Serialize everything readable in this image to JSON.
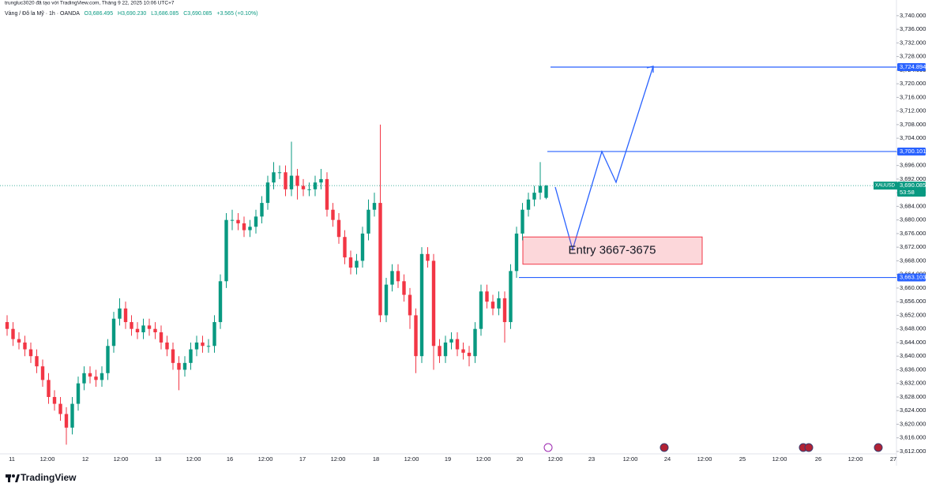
{
  "chart_data": {
    "type": "candlestick",
    "watermark": "trungluc3020 đã tạo với TradingView.com, Tháng 9 22, 2025 10:06 UTC+7",
    "legend": {
      "symbol": "Vàng / Đô la Mỹ · 1h · OANDA",
      "ohlc": [
        "O3,686.495",
        "H3,690.230",
        "L3,686.085",
        "C3,690.085"
      ],
      "change": "+3.565 (+0.10%)"
    },
    "up_color": "#089981",
    "down_color": "#f23645",
    "x_labels": [
      "11",
      "12:00",
      "12",
      "12:00",
      "13",
      "12:00",
      "16",
      "12:00",
      "17",
      "12:00",
      "18",
      "12:00",
      "19",
      "12:00",
      "20",
      "12:00",
      "23",
      "12:00",
      "24",
      "12:00",
      "25",
      "12:00",
      "26",
      "12:00",
      "27"
    ],
    "open": [
      3650,
      3648,
      3645,
      3644,
      3642,
      3640,
      3637,
      3633,
      3628,
      3626,
      3623,
      3619,
      3626,
      3632,
      3635,
      3634,
      3633,
      3635,
      3643,
      3651,
      3654,
      3650,
      3648,
      3647,
      3649,
      3648,
      3647,
      3644,
      3642,
      3638,
      3636,
      3638,
      3642,
      3644,
      3643,
      3643,
      3650,
      3662,
      3680,
      3680,
      3679,
      3677,
      3678,
      3681,
      3685,
      3691,
      3694,
      3694,
      3689,
      3693,
      3690,
      3689,
      3689,
      3691,
      3692,
      3683,
      3680,
      3675,
      3669,
      3666,
      3668,
      3676,
      3683,
      3685,
      3652,
      3661,
      3665,
      3662,
      3658,
      3652,
      3640,
      3670,
      3668,
      3643,
      3640,
      3644,
      3645,
      3642,
      3641,
      3640,
      3648,
      3659,
      3656,
      3654,
      3657,
      3650,
      3665,
      3676,
      3683,
      3686,
      3688,
      3686.495
    ],
    "high": [
      3652,
      3650,
      3647,
      3646,
      3644,
      3642,
      3639,
      3635,
      3630,
      3628,
      3625,
      3628,
      3634,
      3637,
      3637,
      3636,
      3637,
      3645,
      3653,
      3657,
      3656,
      3652,
      3650,
      3651,
      3651,
      3650,
      3649,
      3646,
      3644,
      3640,
      3640,
      3644,
      3646,
      3646,
      3645,
      3652,
      3664,
      3682,
      3683,
      3682,
      3681,
      3680,
      3683,
      3687,
      3693,
      3697,
      3696,
      3696,
      3703,
      3695,
      3692,
      3691,
      3693,
      3695,
      3694,
      3685,
      3682,
      3677,
      3671,
      3670,
      3678,
      3686,
      3688,
      3708,
      3663,
      3667,
      3667,
      3664,
      3660,
      3654,
      3672,
      3672,
      3670,
      3645,
      3646,
      3647,
      3647,
      3644,
      3643,
      3650,
      3661,
      3661,
      3658,
      3659,
      3659,
      3667,
      3678,
      3685,
      3688,
      3690,
      3697,
      3690.23
    ],
    "low": [
      3646,
      3643,
      3642,
      3640,
      3638,
      3635,
      3631,
      3626,
      3624,
      3621,
      3614,
      3617,
      3624,
      3630,
      3632,
      3631,
      3631,
      3633,
      3641,
      3649,
      3648,
      3646,
      3645,
      3645,
      3646,
      3645,
      3642,
      3640,
      3636,
      3630,
      3634,
      3636,
      3640,
      3641,
      3641,
      3641,
      3648,
      3660,
      3677,
      3677,
      3675,
      3675,
      3676,
      3679,
      3683,
      3689,
      3692,
      3687,
      3687,
      3686,
      3687,
      3687,
      3687,
      3689,
      3681,
      3678,
      3673,
      3667,
      3664,
      3664,
      3666,
      3674,
      3681,
      3650,
      3650,
      3659,
      3660,
      3656,
      3648,
      3635,
      3638,
      3666,
      3636,
      3638,
      3638,
      3642,
      3640,
      3639,
      3637,
      3638,
      3646,
      3654,
      3652,
      3652,
      3644,
      3648,
      3663,
      3674,
      3681,
      3684,
      3686,
      3686.085
    ],
    "close": [
      3648,
      3645,
      3644,
      3642,
      3640,
      3637,
      3633,
      3628,
      3626,
      3623,
      3619,
      3626,
      3632,
      3635,
      3634,
      3633,
      3635,
      3643,
      3651,
      3654,
      3650,
      3648,
      3647,
      3649,
      3648,
      3647,
      3644,
      3642,
      3638,
      3636,
      3638,
      3642,
      3644,
      3643,
      3643,
      3650,
      3662,
      3680,
      3680,
      3679,
      3677,
      3678,
      3681,
      3685,
      3691,
      3694,
      3694,
      3689,
      3693,
      3690,
      3689,
      3689,
      3691,
      3692,
      3683,
      3680,
      3675,
      3669,
      3666,
      3668,
      3676,
      3683,
      3685,
      3652,
      3661,
      3665,
      3662,
      3658,
      3652,
      3640,
      3670,
      3668,
      3643,
      3640,
      3644,
      3645,
      3642,
      3641,
      3640,
      3648,
      3659,
      3656,
      3654,
      3657,
      3650,
      3665,
      3676,
      3683,
      3686,
      3688,
      3690,
      3690.085
    ],
    "ylim": [
      3611.3,
      3744.6
    ],
    "yticks": [
      {
        "value": 3612,
        "label": "3,612.000"
      },
      {
        "value": 3616,
        "label": "3,616.000"
      },
      {
        "value": 3620,
        "label": "3,620.000"
      },
      {
        "value": 3624,
        "label": "3,624.000"
      },
      {
        "value": 3628,
        "label": "3,628.000"
      },
      {
        "value": 3632,
        "label": "3,632.000"
      },
      {
        "value": 3636,
        "label": "3,636.000"
      },
      {
        "value": 3640,
        "label": "3,640.000"
      },
      {
        "value": 3644,
        "label": "3,644.000"
      },
      {
        "value": 3648,
        "label": "3,648.000"
      },
      {
        "value": 3652,
        "label": "3,652.000"
      },
      {
        "value": 3656,
        "label": "3,656.000"
      },
      {
        "value": 3660,
        "label": "3,660.000"
      },
      {
        "value": 3664,
        "label": "3,664.000"
      },
      {
        "value": 3668,
        "label": "3,668.000"
      },
      {
        "value": 3672,
        "label": "3,672.000"
      },
      {
        "value": 3676,
        "label": "3,676.000"
      },
      {
        "value": 3680,
        "label": "3,680.000"
      },
      {
        "value": 3684,
        "label": "3,684.000"
      },
      {
        "value": 3688,
        "label": "3,688.000"
      },
      {
        "value": 3692,
        "label": "3,692.000"
      },
      {
        "value": 3696,
        "label": "3,696.000"
      },
      {
        "value": 3700,
        "label": "3,700.000"
      },
      {
        "value": 3704,
        "label": "3,704.000"
      },
      {
        "value": 3708,
        "label": "3,708.000"
      },
      {
        "value": 3712,
        "label": "3,712.000"
      },
      {
        "value": 3716,
        "label": "3,716.000"
      },
      {
        "value": 3720,
        "label": "3,720.000"
      },
      {
        "value": 3724,
        "label": "3,724.000"
      },
      {
        "value": 3728,
        "label": "3,728.000"
      },
      {
        "value": 3732,
        "label": "3,732.000"
      },
      {
        "value": 3736,
        "label": "3,736.000"
      },
      {
        "value": 3740,
        "label": "3,740.000"
      }
    ],
    "levels": [
      {
        "value": 3724.894,
        "label": "3,724.894"
      },
      {
        "value": 3700.101,
        "label": "3,700.101"
      },
      {
        "value": 3663.103,
        "label": "3,663.103"
      }
    ],
    "level_color": "#2962ff",
    "last_price": {
      "symbol": "XAUUSD",
      "value": 3690.085,
      "label": "3,690.085",
      "countdown": "53:58"
    },
    "entry_zone": {
      "label": "Entry 3667-3675",
      "low": 3667,
      "high": 3675
    },
    "footer_brand": "TradingView"
  }
}
